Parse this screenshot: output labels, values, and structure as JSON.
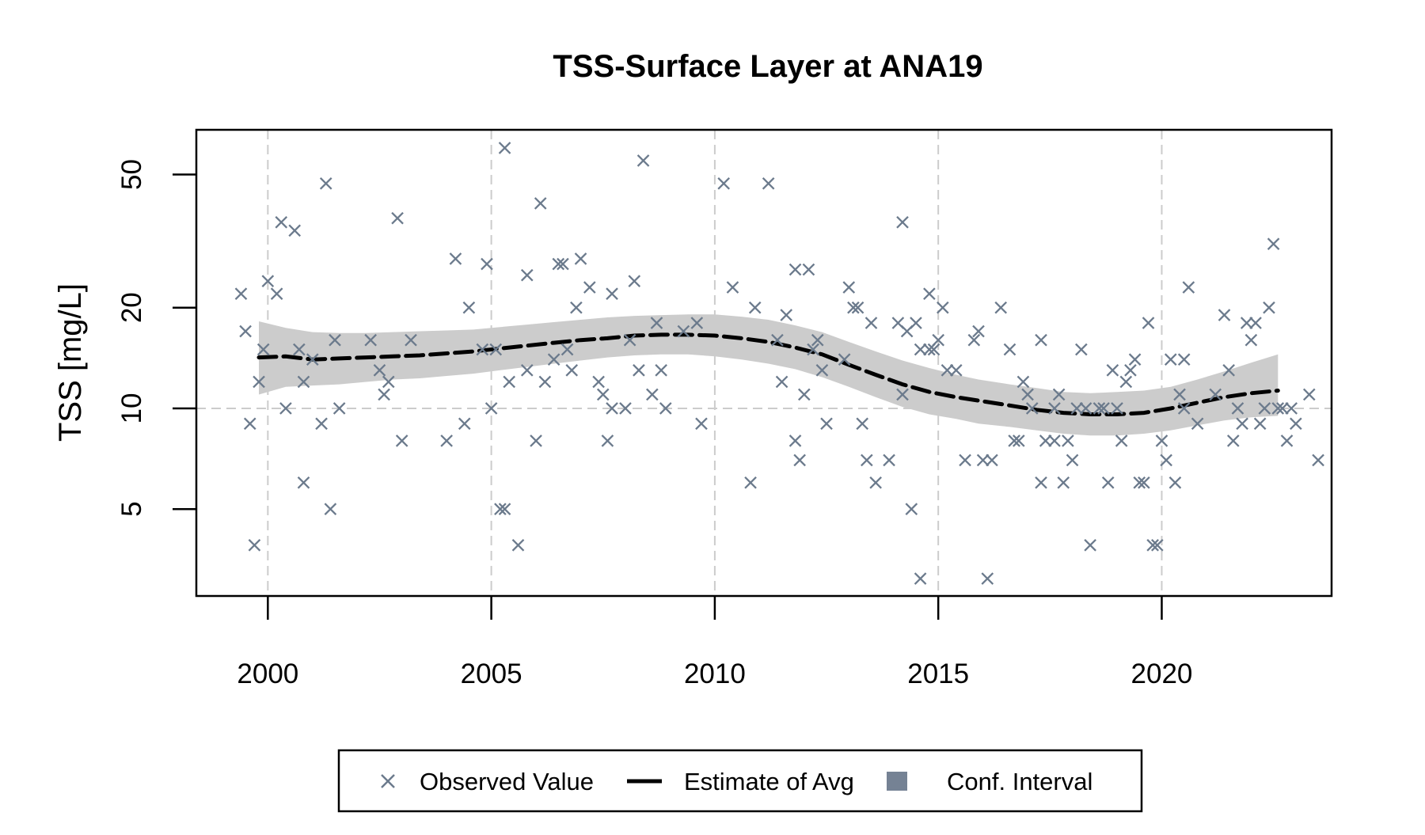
{
  "chart_data": {
    "type": "scatter",
    "title": "TSS-Surface Layer at ANA19",
    "xlabel": "",
    "ylabel": "TSS [mg/L]",
    "y_scale": "log",
    "xlim": [
      1998.4,
      2023.8
    ],
    "ylim": [
      2.75,
      68
    ],
    "x_ticks": [
      2000,
      2005,
      2010,
      2015,
      2020
    ],
    "x_tick_labels": [
      "2000",
      "2005",
      "2010",
      "2015",
      "2020"
    ],
    "y_ticks": [
      5,
      10,
      20,
      50
    ],
    "y_tick_labels": [
      "5",
      "10",
      "20",
      "50"
    ],
    "grid": {
      "x": [
        2000,
        2005,
        2010,
        2015,
        2020
      ],
      "y": [
        10
      ],
      "style": "dashed",
      "color": "#cccccc"
    },
    "colors": {
      "observed": "#6b7a8c",
      "estimate": "#000000",
      "ci_band": "#cccccc",
      "ci_legend": "#758294"
    },
    "legend": {
      "position": "bottom-center",
      "items": [
        {
          "label": "Observed Value",
          "symbol": "cross"
        },
        {
          "label": "Estimate of Avg",
          "symbol": "dashed-line"
        },
        {
          "label": "Conf. Interval",
          "symbol": "filled-square"
        }
      ]
    },
    "series": [
      {
        "name": "Observed Value",
        "type": "scatter",
        "points": [
          [
            1999.4,
            22
          ],
          [
            1999.5,
            17
          ],
          [
            1999.6,
            9
          ],
          [
            1999.7,
            3.9
          ],
          [
            1999.8,
            12
          ],
          [
            1999.9,
            15
          ],
          [
            2000.0,
            24
          ],
          [
            2000.2,
            22
          ],
          [
            2000.3,
            36
          ],
          [
            2000.4,
            10
          ],
          [
            2000.6,
            34
          ],
          [
            2000.7,
            15
          ],
          [
            2000.8,
            12
          ],
          [
            2000.8,
            6
          ],
          [
            2001.0,
            14
          ],
          [
            2001.2,
            9
          ],
          [
            2001.3,
            47
          ],
          [
            2001.4,
            5
          ],
          [
            2001.5,
            16
          ],
          [
            2001.6,
            10
          ],
          [
            2002.3,
            16
          ],
          [
            2002.5,
            13
          ],
          [
            2002.6,
            11
          ],
          [
            2002.7,
            12
          ],
          [
            2002.9,
            37
          ],
          [
            2003.0,
            8
          ],
          [
            2003.2,
            16
          ],
          [
            2004.0,
            8
          ],
          [
            2004.2,
            28
          ],
          [
            2004.4,
            9
          ],
          [
            2004.5,
            20
          ],
          [
            2004.8,
            15
          ],
          [
            2004.9,
            27
          ],
          [
            2005.0,
            10
          ],
          [
            2005.1,
            15
          ],
          [
            2005.2,
            5
          ],
          [
            2005.3,
            5
          ],
          [
            2005.3,
            60
          ],
          [
            2005.4,
            12
          ],
          [
            2005.6,
            3.9
          ],
          [
            2005.8,
            13
          ],
          [
            2005.8,
            25
          ],
          [
            2006.0,
            8
          ],
          [
            2006.1,
            41
          ],
          [
            2006.2,
            12
          ],
          [
            2006.4,
            14
          ],
          [
            2006.5,
            27
          ],
          [
            2006.6,
            27
          ],
          [
            2006.7,
            15
          ],
          [
            2006.8,
            13
          ],
          [
            2006.9,
            20
          ],
          [
            2007.0,
            28
          ],
          [
            2007.2,
            23
          ],
          [
            2007.4,
            12
          ],
          [
            2007.5,
            11
          ],
          [
            2007.6,
            8
          ],
          [
            2007.7,
            10
          ],
          [
            2007.7,
            22
          ],
          [
            2008.0,
            10
          ],
          [
            2008.1,
            16
          ],
          [
            2008.2,
            24
          ],
          [
            2008.3,
            13
          ],
          [
            2008.4,
            55
          ],
          [
            2008.6,
            11
          ],
          [
            2008.7,
            18
          ],
          [
            2008.8,
            13
          ],
          [
            2008.9,
            10
          ],
          [
            2009.3,
            17
          ],
          [
            2009.6,
            18
          ],
          [
            2009.7,
            9
          ],
          [
            2010.2,
            47
          ],
          [
            2010.4,
            23
          ],
          [
            2010.8,
            6
          ],
          [
            2010.9,
            20
          ],
          [
            2011.2,
            47
          ],
          [
            2011.4,
            16
          ],
          [
            2011.5,
            12
          ],
          [
            2011.6,
            19
          ],
          [
            2011.8,
            26
          ],
          [
            2011.8,
            8
          ],
          [
            2011.9,
            7
          ],
          [
            2012.0,
            11
          ],
          [
            2012.1,
            26
          ],
          [
            2012.2,
            15
          ],
          [
            2012.3,
            16
          ],
          [
            2012.4,
            13
          ],
          [
            2012.5,
            9
          ],
          [
            2012.9,
            14
          ],
          [
            2013.0,
            23
          ],
          [
            2013.1,
            20
          ],
          [
            2013.2,
            20
          ],
          [
            2013.3,
            9
          ],
          [
            2013.4,
            7
          ],
          [
            2013.5,
            18
          ],
          [
            2013.6,
            6
          ],
          [
            2013.9,
            7
          ],
          [
            2014.1,
            18
          ],
          [
            2014.2,
            11
          ],
          [
            2014.2,
            36
          ],
          [
            2014.3,
            17
          ],
          [
            2014.4,
            5
          ],
          [
            2014.5,
            18
          ],
          [
            2014.6,
            3.1
          ],
          [
            2014.6,
            15
          ],
          [
            2014.8,
            22
          ],
          [
            2014.8,
            15
          ],
          [
            2014.9,
            15
          ],
          [
            2015.0,
            16
          ],
          [
            2015.1,
            20
          ],
          [
            2015.2,
            13
          ],
          [
            2015.4,
            13
          ],
          [
            2015.6,
            7
          ],
          [
            2015.8,
            16
          ],
          [
            2015.9,
            17
          ],
          [
            2016.0,
            7
          ],
          [
            2016.1,
            3.1
          ],
          [
            2016.2,
            7
          ],
          [
            2016.4,
            20
          ],
          [
            2016.6,
            15
          ],
          [
            2016.7,
            8
          ],
          [
            2016.8,
            8
          ],
          [
            2016.9,
            12
          ],
          [
            2017.0,
            11
          ],
          [
            2017.1,
            10
          ],
          [
            2017.3,
            6
          ],
          [
            2017.3,
            16
          ],
          [
            2017.4,
            8
          ],
          [
            2017.6,
            8
          ],
          [
            2017.6,
            10
          ],
          [
            2017.7,
            11
          ],
          [
            2017.8,
            6
          ],
          [
            2017.9,
            8
          ],
          [
            2018.0,
            7
          ],
          [
            2018.1,
            10
          ],
          [
            2018.2,
            15
          ],
          [
            2018.3,
            10
          ],
          [
            2018.4,
            3.9
          ],
          [
            2018.6,
            10
          ],
          [
            2018.7,
            10
          ],
          [
            2018.8,
            6
          ],
          [
            2018.9,
            13
          ],
          [
            2019.0,
            10
          ],
          [
            2019.1,
            8
          ],
          [
            2019.2,
            12
          ],
          [
            2019.3,
            13
          ],
          [
            2019.4,
            14
          ],
          [
            2019.5,
            6
          ],
          [
            2019.6,
            6
          ],
          [
            2019.7,
            18
          ],
          [
            2019.8,
            3.9
          ],
          [
            2019.9,
            3.9
          ],
          [
            2020.0,
            8
          ],
          [
            2020.1,
            7
          ],
          [
            2020.2,
            14
          ],
          [
            2020.3,
            6
          ],
          [
            2020.4,
            11
          ],
          [
            2020.5,
            10
          ],
          [
            2020.5,
            14
          ],
          [
            2020.6,
            23
          ],
          [
            2020.8,
            9
          ],
          [
            2021.2,
            11
          ],
          [
            2021.4,
            19
          ],
          [
            2021.5,
            13
          ],
          [
            2021.6,
            8
          ],
          [
            2021.7,
            10
          ],
          [
            2021.8,
            9
          ],
          [
            2021.9,
            18
          ],
          [
            2022.0,
            16
          ],
          [
            2022.1,
            18
          ],
          [
            2022.2,
            9
          ],
          [
            2022.3,
            10
          ],
          [
            2022.4,
            20
          ],
          [
            2022.5,
            31
          ],
          [
            2022.6,
            10
          ],
          [
            2022.7,
            10
          ],
          [
            2022.8,
            8
          ],
          [
            2022.9,
            10
          ],
          [
            2023.0,
            9
          ],
          [
            2023.3,
            11
          ],
          [
            2023.5,
            7
          ]
        ]
      },
      {
        "name": "Estimate of Avg",
        "type": "line",
        "points": [
          [
            1999.8,
            14.2
          ],
          [
            2000.4,
            14.3
          ],
          [
            2001.0,
            14.0
          ],
          [
            2001.6,
            14.1
          ],
          [
            2002.2,
            14.2
          ],
          [
            2002.8,
            14.3
          ],
          [
            2003.4,
            14.4
          ],
          [
            2004.0,
            14.6
          ],
          [
            2004.6,
            14.8
          ],
          [
            2005.2,
            15.1
          ],
          [
            2005.8,
            15.4
          ],
          [
            2006.4,
            15.7
          ],
          [
            2007.0,
            16.0
          ],
          [
            2007.6,
            16.2
          ],
          [
            2008.2,
            16.5
          ],
          [
            2008.8,
            16.6
          ],
          [
            2009.4,
            16.6
          ],
          [
            2010.0,
            16.5
          ],
          [
            2010.6,
            16.2
          ],
          [
            2011.2,
            15.8
          ],
          [
            2011.8,
            15.2
          ],
          [
            2012.4,
            14.5
          ],
          [
            2013.0,
            13.5
          ],
          [
            2013.6,
            12.6
          ],
          [
            2014.2,
            11.8
          ],
          [
            2014.8,
            11.2
          ],
          [
            2015.4,
            10.8
          ],
          [
            2016.0,
            10.5
          ],
          [
            2016.6,
            10.2
          ],
          [
            2017.2,
            9.9
          ],
          [
            2017.8,
            9.7
          ],
          [
            2018.4,
            9.6
          ],
          [
            2019.0,
            9.6
          ],
          [
            2019.6,
            9.7
          ],
          [
            2020.2,
            10.0
          ],
          [
            2020.8,
            10.4
          ],
          [
            2021.4,
            10.8
          ],
          [
            2022.0,
            11.1
          ],
          [
            2022.6,
            11.3
          ]
        ]
      },
      {
        "name": "Conf. Interval",
        "type": "band",
        "points": [
          [
            1999.8,
            11.0,
            18.2
          ],
          [
            2000.4,
            11.6,
            17.4
          ],
          [
            2001.0,
            11.7,
            16.9
          ],
          [
            2001.6,
            11.8,
            16.8
          ],
          [
            2002.2,
            12.0,
            16.8
          ],
          [
            2002.8,
            12.2,
            16.9
          ],
          [
            2003.4,
            12.3,
            17.0
          ],
          [
            2004.0,
            12.5,
            17.1
          ],
          [
            2004.6,
            12.7,
            17.2
          ],
          [
            2005.2,
            13.0,
            17.5
          ],
          [
            2005.8,
            13.3,
            17.8
          ],
          [
            2006.4,
            13.6,
            18.1
          ],
          [
            2007.0,
            13.9,
            18.4
          ],
          [
            2007.6,
            14.2,
            18.7
          ],
          [
            2008.2,
            14.4,
            18.9
          ],
          [
            2008.8,
            14.5,
            19.0
          ],
          [
            2009.4,
            14.5,
            19.1
          ],
          [
            2010.0,
            14.3,
            19.1
          ],
          [
            2010.6,
            14.0,
            18.8
          ],
          [
            2011.2,
            13.6,
            18.4
          ],
          [
            2011.8,
            13.1,
            17.7
          ],
          [
            2012.4,
            12.4,
            16.9
          ],
          [
            2013.0,
            11.6,
            15.8
          ],
          [
            2013.6,
            10.8,
            14.8
          ],
          [
            2014.2,
            10.1,
            13.9
          ],
          [
            2014.8,
            9.6,
            13.2
          ],
          [
            2015.4,
            9.3,
            12.6
          ],
          [
            2015.9,
            9.0,
            12.2
          ],
          [
            2016.6,
            8.8,
            11.8
          ],
          [
            2017.2,
            8.6,
            11.5
          ],
          [
            2017.8,
            8.4,
            11.2
          ],
          [
            2018.4,
            8.3,
            11.1
          ],
          [
            2019.0,
            8.3,
            11.2
          ],
          [
            2019.6,
            8.4,
            11.3
          ],
          [
            2020.2,
            8.6,
            11.6
          ],
          [
            2020.8,
            8.9,
            12.2
          ],
          [
            2021.4,
            9.2,
            12.9
          ],
          [
            2022.0,
            9.4,
            13.7
          ],
          [
            2022.6,
            9.5,
            14.5
          ]
        ]
      }
    ]
  }
}
